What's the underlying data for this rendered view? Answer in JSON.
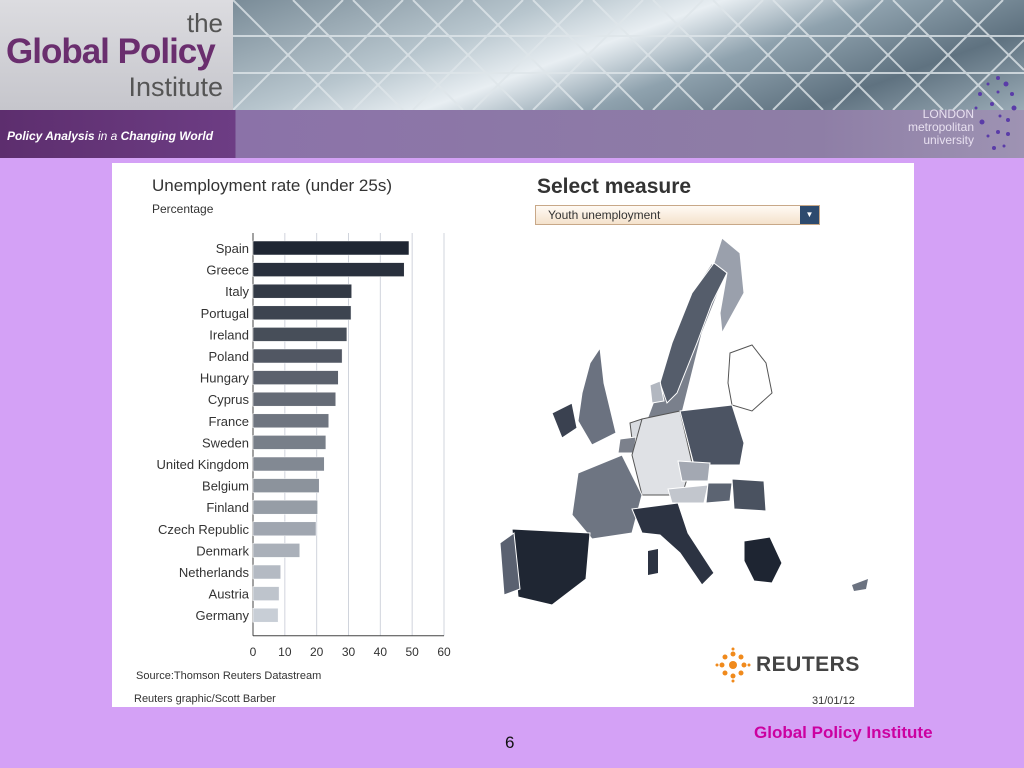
{
  "header": {
    "logo_the": "the",
    "logo_global_policy": "Global Policy",
    "logo_institute": "Institute",
    "tagline_bold": "Policy Analysis",
    "tagline_mid": " in a ",
    "tagline_bold2": "Changing World",
    "university_line1": "LONDON",
    "university_line2": "metropolitan",
    "university_line3": "university"
  },
  "select_measure": {
    "title": "Select measure",
    "selected": "Youth unemployment"
  },
  "chart_data": {
    "type": "bar",
    "orientation": "horizontal",
    "title": "Unemployment rate (under 25s)",
    "subtitle": "Percentage",
    "categories": [
      "Spain",
      "Greece",
      "Italy",
      "Portugal",
      "Ireland",
      "Poland",
      "Hungary",
      "Cyprus",
      "France",
      "Sweden",
      "United Kingdom",
      "Belgium",
      "Finland",
      "Czech Republic",
      "Denmark",
      "Netherlands",
      "Austria",
      "Germany"
    ],
    "values": [
      49,
      47.5,
      31,
      30.8,
      29.5,
      28,
      26.8,
      26,
      23.8,
      22.9,
      22.4,
      20.8,
      20.3,
      19.8,
      14.7,
      8.7,
      8.2,
      7.9
    ],
    "xlim": [
      0,
      60
    ],
    "xticks": [
      "0",
      "10",
      "20",
      "30",
      "40",
      "50",
      "60"
    ],
    "grid": true,
    "source": "Source:Thomson Reuters Datastream",
    "credit": "Reuters graphic/Scott Barber",
    "date": "31/01/12",
    "brand": "REUTERS"
  },
  "footer": {
    "brand": "Global Policy Institute",
    "page": "6"
  }
}
